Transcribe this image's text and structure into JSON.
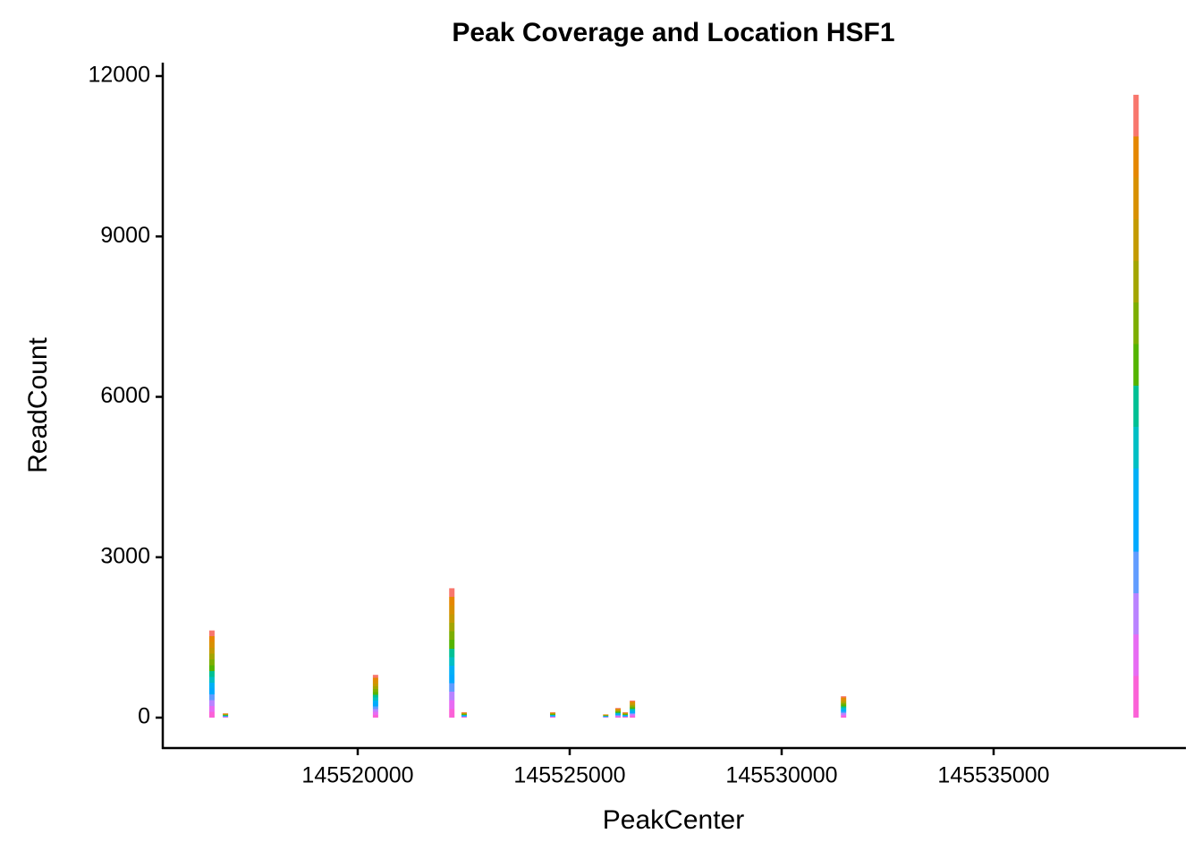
{
  "chart_data": {
    "type": "bar",
    "title": "Peak Coverage and Location HSF1",
    "x_label": "PeakCenter",
    "y_label": "ReadCount",
    "x": [
      145516560,
      145516880,
      145520420,
      145522220,
      145522510,
      145524600,
      145525850,
      145526140,
      145526310,
      145526480,
      145531460,
      145538360
    ],
    "values": [
      1630,
      80,
      800,
      2420,
      100,
      100,
      60,
      180,
      100,
      320,
      400,
      11650
    ],
    "palette": [
      "#fb61d7",
      "#e76bf3",
      "#b983ff",
      "#619cff",
      "#00a9ff",
      "#00b0f6",
      "#00bfc4",
      "#00c094",
      "#53b400",
      "#7cae00",
      "#a3a500",
      "#c49a00",
      "#d89000",
      "#e58700",
      "#f8766d"
    ],
    "xlim": [
      145515401,
      145539536
    ],
    "xticks": [
      145520000,
      145525000,
      145530000,
      145535000
    ],
    "ylim": [
      -569,
      12251
    ],
    "yticks": [
      0,
      3000,
      6000,
      9000,
      12000
    ],
    "grid": false
  }
}
